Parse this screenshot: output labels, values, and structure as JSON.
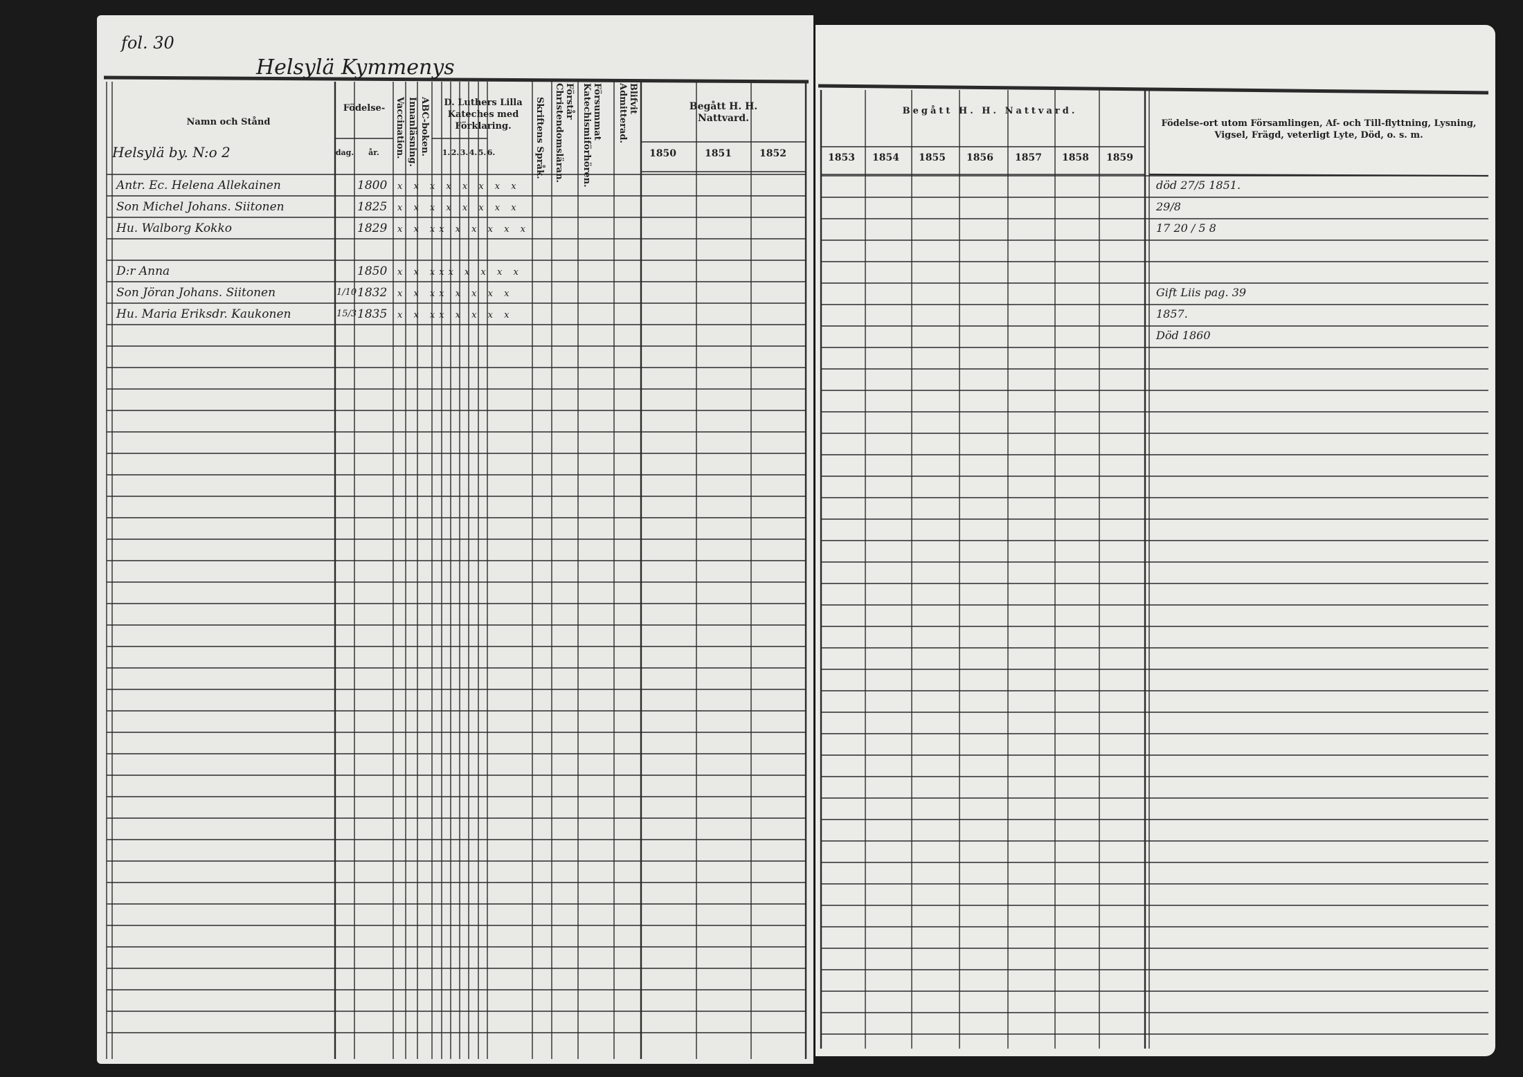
{
  "folio": "fol. 30",
  "village": "Helsylä Kymmenys",
  "left_header": {
    "name": "Namn och Stånd",
    "birth": "Födelse-",
    "birth_day": "dag.",
    "birth_year": "år.",
    "vaccination": "Vaccination.",
    "reading": "Innanläsning.",
    "abc": "ABC-boken.",
    "catechism": "D. Luthers Lilla Kateches med Förklaring.",
    "catechism_parts": [
      "1.",
      "2.",
      "3.",
      "4.",
      "5.",
      "6."
    ],
    "scripture": "Skriftens Språk.",
    "christian": "Förstår Christendomsläran.",
    "neglected": "Försummat Katechismiförhören.",
    "admitted": "Blifvit Admitterad.",
    "communion": "Begått H. H. Nattvard.",
    "years": [
      "1850",
      "1851",
      "1852"
    ]
  },
  "right_header": {
    "communion": "Begått H. H. Nattvard.",
    "years": [
      "1853",
      "1854",
      "1855",
      "1856",
      "1857",
      "1858",
      "1859"
    ],
    "remarks": "Födelse-ort utom Församlingen, Af- och Till-flyttning, Lysning, Vigsel, Frägd, veterligt Lyte, Död, o. s. m."
  },
  "household": "Helsylä by. N:o 2",
  "entries": [
    {
      "name": "Antr. Ec. Helena Allekainen",
      "day": "",
      "year": "1800",
      "marks": "x x x x x x x x",
      "remark": "död 27/5 1851."
    },
    {
      "name": "Son Michel Johans. Siitonen",
      "day": "",
      "year": "1825",
      "marks": "x x x x x x x x",
      "remark": "29/8"
    },
    {
      "name": "Hu. Walborg Kokko",
      "day": "",
      "year": "1829",
      "marks": "x x xx x x x x x",
      "remark": "17 20 / 5 8"
    },
    {
      "name": "",
      "day": "",
      "year": "",
      "marks": "",
      "remark": ""
    },
    {
      "name": "D:r Anna",
      "day": "",
      "year": "1850",
      "marks": "x x xxx x x x x",
      "remark": ""
    },
    {
      "name": "Son Jöran Johans. Siitonen",
      "day": "1/10",
      "year": "1832",
      "marks": "x x xx x x x x",
      "remark": "Gift Liis pag. 39"
    },
    {
      "name": "Hu. Maria Eriksdr. Kaukonen",
      "day": "15/3",
      "year": "1835",
      "marks": "x x xx x x x x",
      "remark": "1857."
    },
    {
      "name": "",
      "day": "",
      "year": "",
      "marks": "",
      "remark": "Död 1860"
    }
  ],
  "colors": {
    "paper": "#e9e9e6",
    "ink": "#222222",
    "background": "#1a1a1a"
  }
}
